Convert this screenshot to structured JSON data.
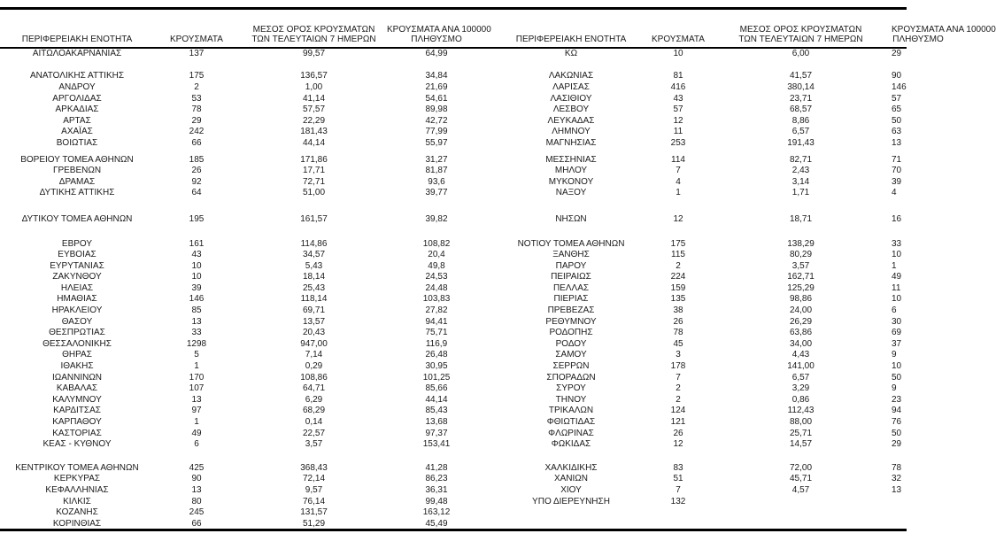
{
  "tables": [
    {
      "id": "left",
      "headers": [
        {
          "lines": [
            "ΠΕΡΙΦΕΡΕΙΑΚΗ ΕΝΟΤΗΤΑ"
          ]
        },
        {
          "lines": [
            "ΚΡΟΥΣΜΑΤΑ"
          ]
        },
        {
          "lines": [
            "ΜΕΣΟΣ ΟΡΟΣ ΚΡΟΥΣΜΑΤΩΝ",
            "ΤΩΝ ΤΕΛΕΥΤΑΙΩΝ 7 ΗΜΕΡΩΝ"
          ]
        },
        {
          "lines": [
            "ΚΡΟΥΣΜΑΤΑ ΑΝΑ 100000",
            "ΠΛΗΘΥΣΜΟ"
          ]
        }
      ],
      "sections": [
        [
          [
            "ΑΙΤΩΛΟΑΚΑΡΝΑΝΙΑΣ",
            "137",
            "99,57",
            "64,99"
          ]
        ],
        [
          [
            "ΑΝΑΤΟΛΙΚΗΣ ΑΤΤΙΚΗΣ",
            "175",
            "136,57",
            "34,84"
          ],
          [
            "ΑΝΔΡΟΥ",
            "2",
            "1,00",
            "21,69"
          ],
          [
            "ΑΡΓΟΛΙΔΑΣ",
            "53",
            "41,14",
            "54,61"
          ],
          [
            "ΑΡΚΑΔΙΑΣ",
            "78",
            "57,57",
            "89,98"
          ],
          [
            "ΑΡΤΑΣ",
            "29",
            "22,29",
            "42,72"
          ],
          [
            "ΑΧΑΪΑΣ",
            "242",
            "181,43",
            "77,99"
          ],
          [
            "ΒΟΙΩΤΙΑΣ",
            "66",
            "44,14",
            "55,97"
          ]
        ],
        [
          [
            "ΒΟΡΕΙΟΥ ΤΟΜΕΑ ΑΘΗΝΩΝ",
            "185",
            "171,86",
            "31,27"
          ],
          [
            "ΓΡΕΒΕΝΩΝ",
            "26",
            "17,71",
            "81,87"
          ],
          [
            "ΔΡΑΜΑΣ",
            "92",
            "72,71",
            "93,6"
          ],
          [
            "ΔΥΤΙΚΗΣ ΑΤΤΙΚΗΣ",
            "64",
            "51,00",
            "39,77"
          ]
        ],
        [
          [
            "ΔΥΤΙΚΟΥ ΤΟΜΕΑ ΑΘΗΝΩΝ",
            "195",
            "161,57",
            "39,82"
          ]
        ],
        [
          [
            "ΕΒΡΟΥ",
            "161",
            "114,86",
            "108,82"
          ],
          [
            "ΕΥΒΟΙΑΣ",
            "43",
            "34,57",
            "20,4"
          ],
          [
            "ΕΥΡΥΤΑΝΙΑΣ",
            "10",
            "5,43",
            "49,8"
          ],
          [
            "ΖΑΚΥΝΘΟΥ",
            "10",
            "18,14",
            "24,53"
          ],
          [
            "ΗΛΕΙΑΣ",
            "39",
            "25,43",
            "24,48"
          ],
          [
            "ΗΜΑΘΙΑΣ",
            "146",
            "118,14",
            "103,83"
          ],
          [
            "ΗΡΑΚΛΕΙΟΥ",
            "85",
            "69,71",
            "27,82"
          ],
          [
            "ΘΑΣΟΥ",
            "13",
            "13,57",
            "94,41"
          ],
          [
            "ΘΕΣΠΡΩΤΙΑΣ",
            "33",
            "20,43",
            "75,71"
          ],
          [
            "ΘΕΣΣΑΛΟΝΙΚΗΣ",
            "1298",
            "947,00",
            "116,9"
          ],
          [
            "ΘΗΡΑΣ",
            "5",
            "7,14",
            "26,48"
          ],
          [
            "ΙΘΑΚΗΣ",
            "1",
            "0,29",
            "30,95"
          ],
          [
            "ΙΩΑΝΝΙΝΩΝ",
            "170",
            "108,86",
            "101,25"
          ],
          [
            "ΚΑΒΑΛΑΣ",
            "107",
            "64,71",
            "85,66"
          ],
          [
            "ΚΑΛΥΜΝΟΥ",
            "13",
            "6,29",
            "44,14"
          ],
          [
            "ΚΑΡΔΙΤΣΑΣ",
            "97",
            "68,29",
            "85,43"
          ],
          [
            "ΚΑΡΠΑΘΟΥ",
            "1",
            "0,14",
            "13,68"
          ],
          [
            "ΚΑΣΤΟΡΙΑΣ",
            "49",
            "22,57",
            "97,37"
          ],
          [
            "ΚΕΑΣ - ΚΥΘΝΟΥ",
            "6",
            "3,57",
            "153,41"
          ]
        ],
        [
          [
            "ΚΕΝΤΡΙΚΟΥ ΤΟΜΕΑ ΑΘΗΝΩΝ",
            "425",
            "368,43",
            "41,28"
          ],
          [
            "ΚΕΡΚΥΡΑΣ",
            "90",
            "72,14",
            "86,23"
          ],
          [
            "ΚΕΦΑΛΛΗΝΙΑΣ",
            "13",
            "9,57",
            "36,31"
          ],
          [
            "ΚΙΛΚΙΣ",
            "80",
            "76,14",
            "99,48"
          ],
          [
            "ΚΟΖΑΝΗΣ",
            "245",
            "131,57",
            "163,12"
          ],
          [
            "ΚΟΡΙΝΘΙΑΣ",
            "66",
            "51,29",
            "45,49"
          ]
        ]
      ]
    },
    {
      "id": "right",
      "headers": [
        {
          "lines": [
            "ΠΕΡΙΦΕΡΕΙΑΚΗ ΕΝΟΤΗΤΑ"
          ]
        },
        {
          "lines": [
            "ΚΡΟΥΣΜΑΤΑ"
          ]
        },
        {
          "lines": [
            "ΜΕΣΟΣ ΟΡΟΣ ΚΡΟΥΣΜΑΤΩΝ",
            "ΤΩΝ ΤΕΛΕΥΤΑΙΩΝ 7 ΗΜΕΡΩΝ"
          ]
        },
        {
          "lines": [
            "ΚΡΟΥΣΜΑΤΑ ΑΝΑ 100000",
            "ΠΛΗΘΥΣΜΟ"
          ]
        }
      ],
      "sections": [
        [
          [
            "ΚΩ",
            "10",
            "6,00",
            "29"
          ]
        ],
        [
          [
            "ΛΑΚΩΝΙΑΣ",
            "81",
            "41,57",
            "90"
          ],
          [
            "ΛΑΡΙΣΑΣ",
            "416",
            "380,14",
            "146"
          ],
          [
            "ΛΑΣΙΘΙΟΥ",
            "43",
            "23,71",
            "57"
          ],
          [
            "ΛΕΣΒΟΥ",
            "57",
            "68,57",
            "65"
          ],
          [
            "ΛΕΥΚΑΔΑΣ",
            "12",
            "8,86",
            "50"
          ],
          [
            "ΛΗΜΝΟΥ",
            "11",
            "6,57",
            "63"
          ],
          [
            "ΜΑΓΝΗΣΙΑΣ",
            "253",
            "191,43",
            "13"
          ]
        ],
        [
          [
            "ΜΕΣΣΗΝΙΑΣ",
            "114",
            "82,71",
            "71"
          ],
          [
            "ΜΗΛΟΥ",
            "7",
            "2,43",
            "70"
          ],
          [
            "ΜΥΚΟΝΟΥ",
            "4",
            "3,14",
            "39"
          ],
          [
            "ΝΑΞΟΥ",
            "1",
            "1,71",
            "4"
          ]
        ],
        [
          [
            "ΝΗΣΩΝ",
            "12",
            "18,71",
            "16"
          ]
        ],
        [
          [
            "ΝΟΤΙΟΥ ΤΟΜΕΑ ΑΘΗΝΩΝ",
            "175",
            "138,29",
            "33"
          ],
          [
            "ΞΑΝΘΗΣ",
            "115",
            "80,29",
            "10"
          ],
          [
            "ΠΑΡΟΥ",
            "2",
            "3,57",
            "1"
          ],
          [
            "ΠΕΙΡΑΙΩΣ",
            "224",
            "162,71",
            "49"
          ],
          [
            "ΠΕΛΛΑΣ",
            "159",
            "125,29",
            "11"
          ],
          [
            "ΠΙΕΡΙΑΣ",
            "135",
            "98,86",
            "10"
          ],
          [
            "ΠΡΕΒΕΖΑΣ",
            "38",
            "24,00",
            "6"
          ],
          [
            "ΡΕΘΥΜΝΟΥ",
            "26",
            "26,29",
            "30"
          ],
          [
            "ΡΟΔΟΠΗΣ",
            "78",
            "63,86",
            "69"
          ],
          [
            "ΡΟΔΟΥ",
            "45",
            "34,00",
            "37"
          ],
          [
            "ΣΑΜΟΥ",
            "3",
            "4,43",
            "9"
          ],
          [
            "ΣΕΡΡΩΝ",
            "178",
            "141,00",
            "10"
          ],
          [
            "ΣΠΟΡΑΔΩΝ",
            "7",
            "6,57",
            "50"
          ],
          [
            "ΣΥΡΟΥ",
            "2",
            "3,29",
            "9"
          ],
          [
            "ΤΗΝΟΥ",
            "2",
            "0,86",
            "23"
          ],
          [
            "ΤΡΙΚΑΛΩΝ",
            "124",
            "112,43",
            "94"
          ],
          [
            "ΦΘΙΩΤΙΔΑΣ",
            "121",
            "88,00",
            "76"
          ],
          [
            "ΦΛΩΡΙΝΑΣ",
            "26",
            "25,71",
            "50"
          ],
          [
            "ΦΩΚΙΔΑΣ",
            "12",
            "14,57",
            "29"
          ]
        ],
        [
          [
            "ΧΑΛΚΙΔΙΚΗΣ",
            "83",
            "72,00",
            "78"
          ],
          [
            "ΧΑΝΙΩΝ",
            "51",
            "45,71",
            "32"
          ],
          [
            "ΧΙΟΥ",
            "7",
            "4,57",
            "13"
          ],
          [
            "ΥΠΟ ΔΙΕΡΕΥΝΗΣΗ",
            "132",
            "",
            ""
          ]
        ]
      ]
    }
  ]
}
